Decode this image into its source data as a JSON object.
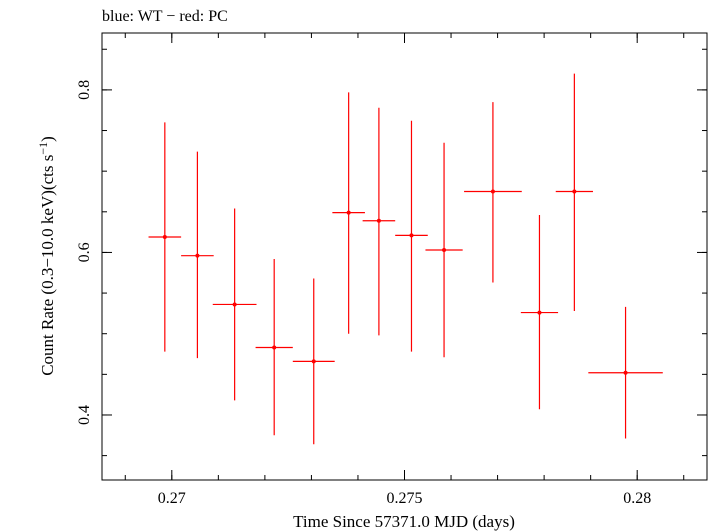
{
  "chart_data": {
    "type": "scatter",
    "title": "blue: WT − red: PC",
    "xlabel": "Time Since 57371.0 MJD (days)",
    "ylabel_main": "Count Rate (0.3−10.0 keV)(cts s",
    "ylabel_sup": "−1",
    "ylabel_tail": ")",
    "xlim": [
      0.2685,
      0.2815
    ],
    "ylim": [
      0.32,
      0.87
    ],
    "xticks": [
      {
        "value": 0.27,
        "label": "0.27"
      },
      {
        "value": 0.275,
        "label": "0.275"
      },
      {
        "value": 0.28,
        "label": "0.28"
      }
    ],
    "yticks": [
      {
        "value": 0.4,
        "label": "0.4"
      },
      {
        "value": 0.6,
        "label": "0.6"
      },
      {
        "value": 0.8,
        "label": "0.8"
      }
    ],
    "x_minor_step": 0.001,
    "y_minor_step": 0.05,
    "grid": false,
    "series": [
      {
        "color": "#ff0000",
        "points": [
          {
            "x": 0.26985,
            "xerr": 0.00035,
            "y": 0.619,
            "ylo": 0.478,
            "yhi": 0.76
          },
          {
            "x": 0.27055,
            "xerr": 0.00035,
            "y": 0.596,
            "ylo": 0.47,
            "yhi": 0.724
          },
          {
            "x": 0.27135,
            "xerr": 0.00047,
            "y": 0.536,
            "ylo": 0.418,
            "yhi": 0.654
          },
          {
            "x": 0.2722,
            "xerr": 0.0004,
            "y": 0.483,
            "ylo": 0.375,
            "yhi": 0.592
          },
          {
            "x": 0.27305,
            "xerr": 0.00045,
            "y": 0.466,
            "ylo": 0.364,
            "yhi": 0.568
          },
          {
            "x": 0.2738,
            "xerr": 0.00035,
            "y": 0.649,
            "ylo": 0.5,
            "yhi": 0.797
          },
          {
            "x": 0.27445,
            "xerr": 0.00035,
            "y": 0.639,
            "ylo": 0.498,
            "yhi": 0.778
          },
          {
            "x": 0.27515,
            "xerr": 0.00035,
            "y": 0.621,
            "ylo": 0.478,
            "yhi": 0.762
          },
          {
            "x": 0.27585,
            "xerr": 0.0004,
            "y": 0.603,
            "ylo": 0.471,
            "yhi": 0.735
          },
          {
            "x": 0.2769,
            "xerr": 0.00062,
            "y": 0.675,
            "ylo": 0.563,
            "yhi": 0.785
          },
          {
            "x": 0.2779,
            "xerr": 0.0004,
            "y": 0.526,
            "ylo": 0.407,
            "yhi": 0.646
          },
          {
            "x": 0.27865,
            "xerr": 0.0004,
            "y": 0.675,
            "ylo": 0.528,
            "yhi": 0.82
          },
          {
            "x": 0.27975,
            "xerr": 0.0008,
            "y": 0.452,
            "ylo": 0.371,
            "yhi": 0.533
          }
        ]
      }
    ]
  }
}
